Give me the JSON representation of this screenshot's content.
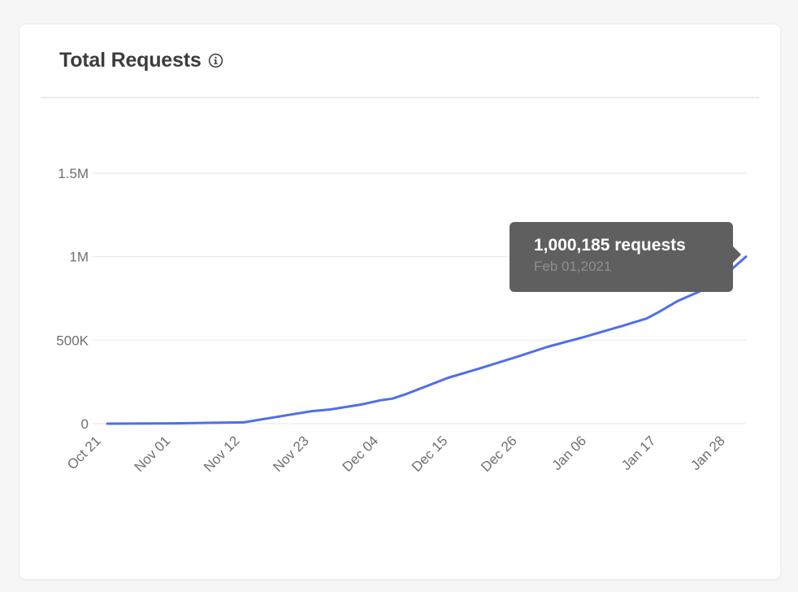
{
  "card": {
    "title": "Total Requests",
    "info_icon": "info-circle-icon"
  },
  "tooltip": {
    "value": "1,000,185 requests",
    "date": "Feb 01,2021"
  },
  "colors": {
    "line": "#4f6fe8",
    "grid": "#e9e9e9",
    "tooltip_bg": "#5f5f5f"
  },
  "chart_data": {
    "type": "line",
    "title": "Total Requests",
    "xlabel": "",
    "ylabel": "",
    "x_ticks": [
      "Oct 21",
      "Nov 01",
      "Nov 12",
      "Nov 23",
      "Dec 04",
      "Dec 15",
      "Dec 26",
      "Jan 06",
      "Jan 17",
      "Jan 28"
    ],
    "y_ticks": [
      "0",
      "500K",
      "1M",
      "1.5M"
    ],
    "y_tick_values": [
      0,
      500000,
      1000000,
      1500000
    ],
    "ylim": [
      0,
      1500000
    ],
    "xlim": [
      "2020-10-21",
      "2021-02-01"
    ],
    "grid": true,
    "series": [
      {
        "points": [
          [
            "2020-10-21",
            0
          ],
          [
            "2020-11-01",
            2000
          ],
          [
            "2020-11-12",
            8000
          ],
          [
            "2020-11-18",
            45000
          ],
          [
            "2020-11-23",
            75000
          ],
          [
            "2020-11-26",
            85000
          ],
          [
            "2020-12-01",
            115000
          ],
          [
            "2020-12-04",
            140000
          ],
          [
            "2020-12-06",
            150000
          ],
          [
            "2020-12-08",
            175000
          ],
          [
            "2020-12-15",
            275000
          ],
          [
            "2020-12-20",
            330000
          ],
          [
            "2020-12-26",
            400000
          ],
          [
            "2020-12-31",
            460000
          ],
          [
            "2021-01-06",
            520000
          ],
          [
            "2021-01-12",
            585000
          ],
          [
            "2021-01-16",
            630000
          ],
          [
            "2021-01-18",
            670000
          ],
          [
            "2021-01-21",
            735000
          ],
          [
            "2021-01-25",
            800000
          ],
          [
            "2021-01-28",
            860000
          ],
          [
            "2021-01-30",
            935000
          ],
          [
            "2021-02-01",
            1000185
          ]
        ]
      }
    ]
  }
}
